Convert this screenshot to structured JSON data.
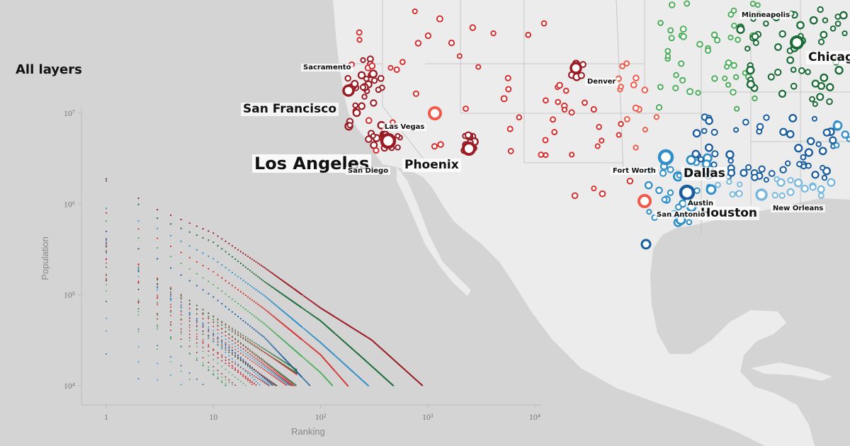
{
  "panel": {
    "title": "All layers"
  },
  "map": {
    "cities": [
      {
        "name": "Los Angeles",
        "size": "xl",
        "lon": -118.24,
        "lat": 34.05
      },
      {
        "name": "San Francisco",
        "size": "l",
        "lon": -122.42,
        "lat": 37.77
      },
      {
        "name": "Phoenix",
        "size": "l",
        "lon": -112.07,
        "lat": 33.45
      },
      {
        "name": "Dallas",
        "size": "l",
        "lon": -96.8,
        "lat": 32.78
      },
      {
        "name": "Houston",
        "size": "l",
        "lon": -95.37,
        "lat": 29.76
      },
      {
        "name": "Chicago",
        "size": "l",
        "lon": -87.63,
        "lat": 41.88
      },
      {
        "name": "Sacramento",
        "size": "s",
        "lon": -121.49,
        "lat": 38.58
      },
      {
        "name": "Las Vegas",
        "size": "s",
        "lon": -115.14,
        "lat": 36.17
      },
      {
        "name": "San Diego",
        "size": "s",
        "lon": -117.16,
        "lat": 32.72
      },
      {
        "name": "Denver",
        "size": "s",
        "lon": -104.99,
        "lat": 39.74
      },
      {
        "name": "Fort Worth",
        "size": "s",
        "lon": -97.33,
        "lat": 32.76
      },
      {
        "name": "Austin",
        "size": "s",
        "lon": -97.74,
        "lat": 30.27
      },
      {
        "name": "San Antonio",
        "size": "s",
        "lon": -98.49,
        "lat": 29.42
      },
      {
        "name": "New Orleans",
        "size": "s",
        "lon": -90.07,
        "lat": 29.95
      },
      {
        "name": "Minneapolis",
        "size": "s",
        "lon": -93.27,
        "lat": 44.98
      }
    ],
    "colors": {
      "land": "#ececec",
      "ocean": "#d4d4d4",
      "border": "#bdbdbd",
      "red_dark": "#9b1b24",
      "red": "#d62f2f",
      "red_light": "#ef5a4a",
      "green_dark": "#1a6b36",
      "green": "#4cae5b",
      "blue_dark": "#1a5ea0",
      "blue": "#2f8fc9",
      "blue_light": "#79b8de"
    }
  },
  "chart_data": {
    "type": "scatter",
    "title": "",
    "xlabel": "Ranking",
    "ylabel": "Population",
    "x_scale": "log",
    "y_scale": "log",
    "xlim": [
      1,
      10000
    ],
    "ylim": [
      10000,
      10000000
    ],
    "x_ticks": [
      "1",
      "10",
      "10²",
      "10³",
      "10⁴"
    ],
    "y_ticks": [
      "10⁴",
      "10⁵",
      "10⁶",
      "10⁷"
    ],
    "grid": false,
    "series": [
      {
        "color": "#9b1b24",
        "values": [
          [
            1,
            1900000
          ],
          [
            3,
            870000
          ],
          [
            10,
            480000
          ],
          [
            30,
            200000
          ],
          [
            100,
            72000
          ],
          [
            300,
            32000
          ],
          [
            900,
            10000
          ]
        ]
      },
      {
        "color": "#1a6b36",
        "values": [
          [
            1,
            1800000
          ],
          [
            3,
            700000
          ],
          [
            10,
            380000
          ],
          [
            30,
            140000
          ],
          [
            100,
            52000
          ],
          [
            250,
            20000
          ],
          [
            480,
            10000
          ]
        ]
      },
      {
        "color": "#2f8fc9",
        "values": [
          [
            1,
            900000
          ],
          [
            3,
            540000
          ],
          [
            10,
            250000
          ],
          [
            30,
            98000
          ],
          [
            100,
            30000
          ],
          [
            280,
            10000
          ]
        ]
      },
      {
        "color": "#d62f2f",
        "values": [
          [
            1,
            800000
          ],
          [
            3,
            420000
          ],
          [
            10,
            180000
          ],
          [
            30,
            70000
          ],
          [
            100,
            22000
          ],
          [
            180,
            10000
          ]
        ]
      },
      {
        "color": "#4cae5b",
        "values": [
          [
            1,
            650000
          ],
          [
            3,
            330000
          ],
          [
            10,
            130000
          ],
          [
            30,
            48000
          ],
          [
            100,
            14000
          ],
          [
            130,
            10000
          ]
        ]
      },
      {
        "color": "#1a5ea0",
        "values": [
          [
            1,
            500000
          ],
          [
            3,
            250000
          ],
          [
            10,
            95000
          ],
          [
            30,
            34000
          ],
          [
            80,
            10000
          ]
        ]
      }
    ]
  }
}
